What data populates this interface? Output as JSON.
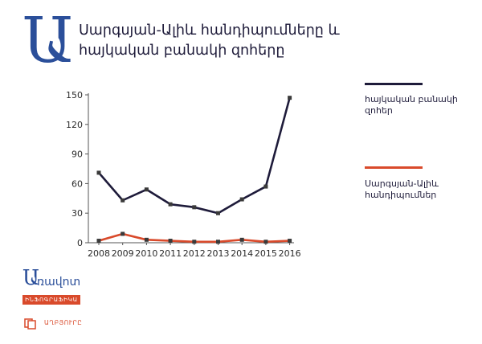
{
  "header": {
    "letter": "Ա",
    "title": "Սարգսյան-Ալիև հանդիպումները և հայկական բանակի զոհերը"
  },
  "legend": {
    "items": [
      {
        "label": "հայկական բանակի զոհեր",
        "color": "#1e1b3a"
      },
      {
        "label": "Սարգսյան-Ալիև հանդիպումներ",
        "color": "#d94a2b"
      }
    ]
  },
  "branding": {
    "logo_letter": "Ա",
    "logo_name": "ռավոտ",
    "logo_tag": "ԻՆՖՈԳՐԱՖԻԿԱ",
    "source_label": "ԱՂԲՅՈՒՐԸ"
  },
  "chart_data": {
    "type": "line",
    "x": [
      "2008",
      "2009",
      "2010",
      "2011",
      "2012",
      "2013",
      "2014",
      "2015",
      "2016"
    ],
    "yticks": [
      0,
      30,
      60,
      90,
      120,
      150
    ],
    "ylim": [
      0,
      150
    ],
    "grid": false,
    "legend_position": "right",
    "series": [
      {
        "name": "հայկական բանակի զոհեր",
        "color": "#1e1b3a",
        "values": [
          71,
          43,
          54,
          39,
          36,
          30,
          44,
          57,
          147
        ]
      },
      {
        "name": "Սարգսյան-Ալիև հանդիպումներ",
        "color": "#d94a2b",
        "values": [
          2,
          9,
          3,
          2,
          1,
          1,
          3,
          1,
          2
        ]
      }
    ]
  }
}
